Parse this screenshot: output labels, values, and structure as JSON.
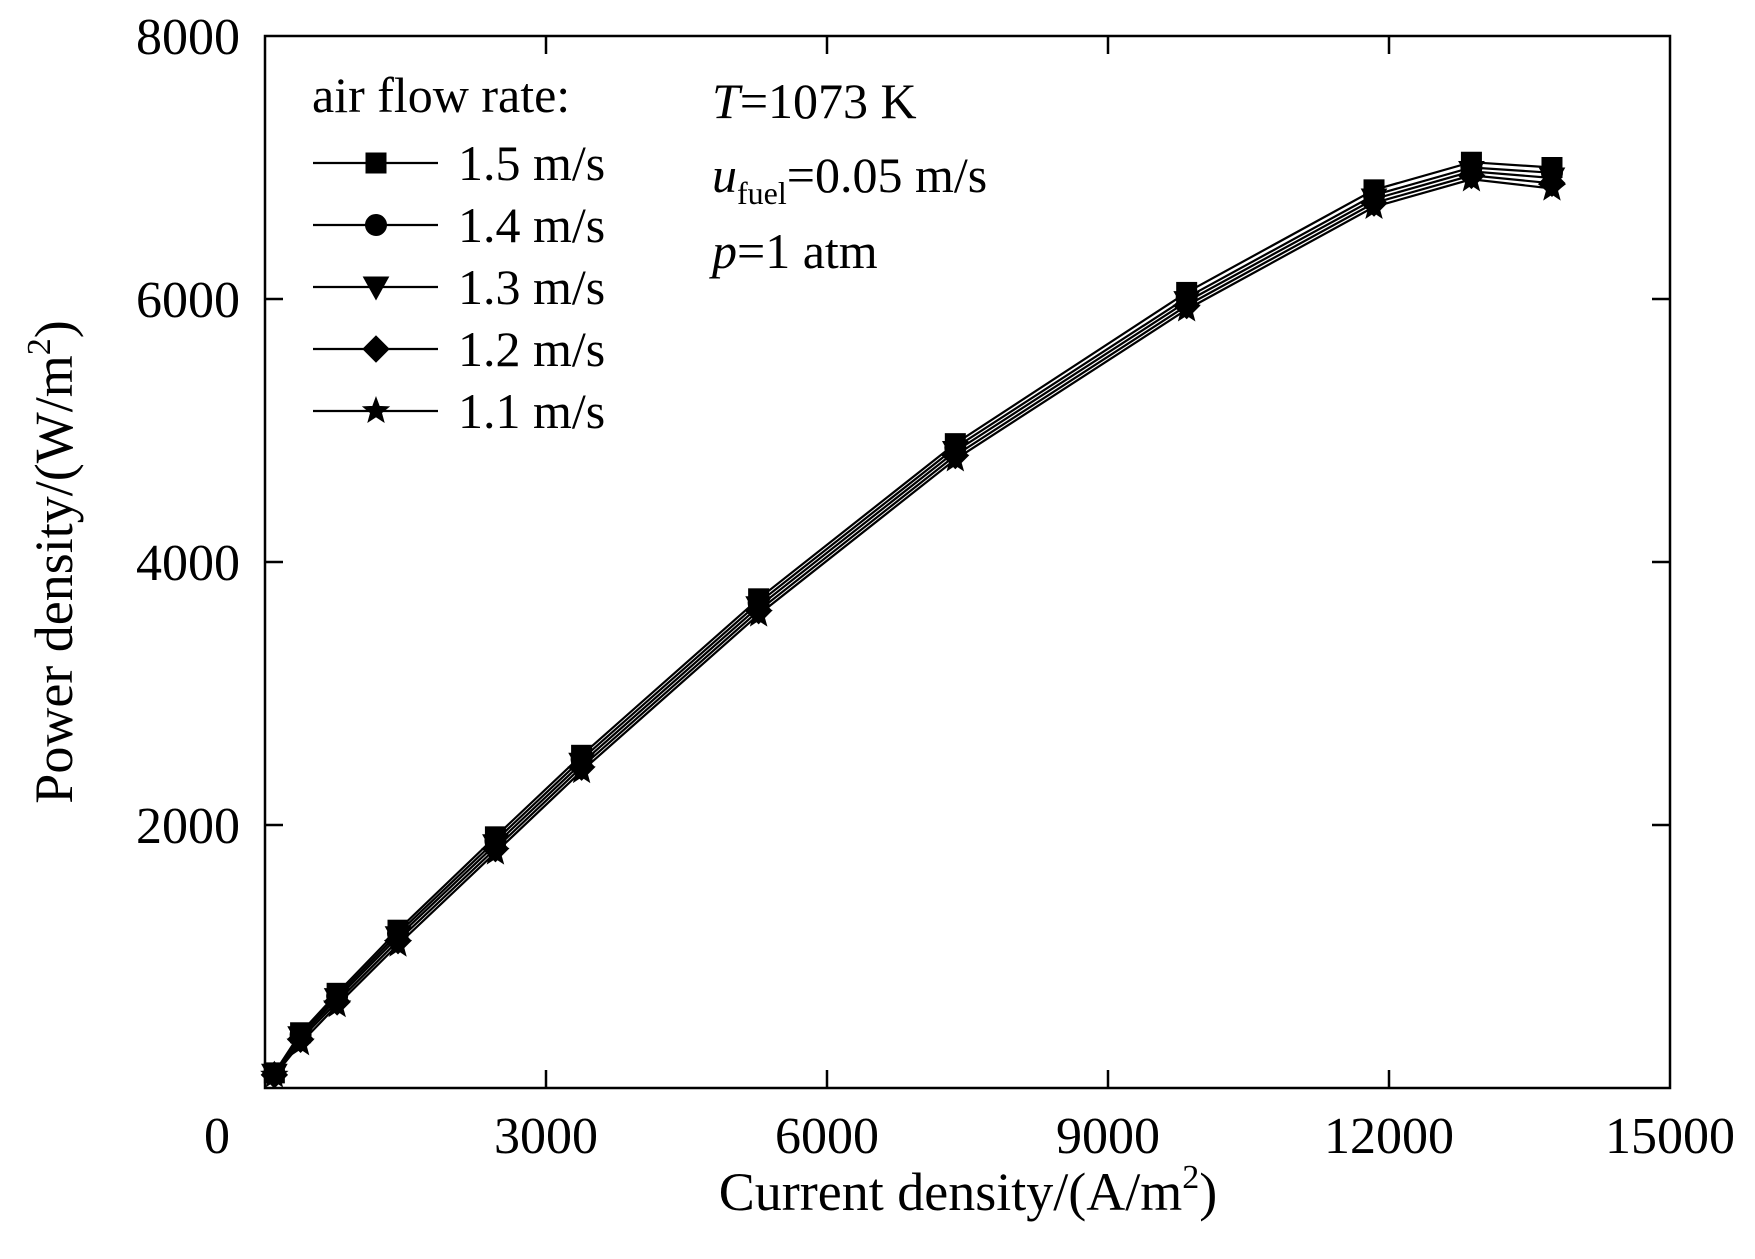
{
  "chart_data": {
    "type": "line",
    "title": "",
    "xlabel": "Current density/(A/m",
    "xlabel_sup": "2",
    "xlabel_tail": ")",
    "ylabel": "Power density/(W/m",
    "ylabel_sup": "2",
    "ylabel_tail": ")",
    "xlim": [
      0,
      15000
    ],
    "ylim": [
      0,
      8000
    ],
    "x_ticks": [
      0,
      3000,
      6000,
      9000,
      12000,
      15000
    ],
    "y_ticks": [
      2000,
      4000,
      6000,
      8000
    ],
    "x_tick_labels": [
      "0",
      "3000",
      "6000",
      "9000",
      "12000",
      "15000"
    ],
    "y_tick_labels": [
      "2000",
      "4000",
      "6000",
      "8000"
    ],
    "legend_title": "air flow rate:",
    "legend_position": "top-left",
    "annotations": {
      "line1_var": "T",
      "line1_rest": "=1073 K",
      "line2_var": "u",
      "line2_sub": "fuel",
      "line2_rest": "=0.05 m/s",
      "line3_var": "p",
      "line3_rest": "=1 atm"
    },
    "series": [
      {
        "name": "1.5 m/s",
        "marker": "square",
        "x": [
          100,
          380,
          770,
          1420,
          2460,
          3380,
          5270,
          7370,
          9840,
          11840,
          12880,
          13740
        ],
        "y": [
          115,
          420,
          720,
          1200,
          1910,
          2530,
          3720,
          4900,
          6050,
          6830,
          7040,
          7000
        ]
      },
      {
        "name": "1.4 m/s",
        "marker": "circle",
        "x": [
          100,
          380,
          770,
          1420,
          2460,
          3380,
          5270,
          7370,
          9840,
          11840,
          12880,
          13740
        ],
        "y": [
          110,
          405,
          700,
          1175,
          1880,
          2500,
          3690,
          4870,
          6010,
          6790,
          7000,
          6960
        ]
      },
      {
        "name": "1.3 m/s",
        "marker": "triangle-down",
        "x": [
          100,
          380,
          770,
          1420,
          2460,
          3380,
          5270,
          7370,
          9840,
          11840,
          12880,
          13740
        ],
        "y": [
          105,
          390,
          680,
          1150,
          1850,
          2470,
          3660,
          4840,
          5980,
          6760,
          6970,
          6920
        ]
      },
      {
        "name": "1.2 m/s",
        "marker": "diamond",
        "x": [
          100,
          380,
          770,
          1420,
          2460,
          3380,
          5270,
          7370,
          9840,
          11840,
          12880,
          13740
        ],
        "y": [
          100,
          370,
          655,
          1120,
          1820,
          2440,
          3630,
          4810,
          5950,
          6730,
          6940,
          6880
        ]
      },
      {
        "name": "1.1 m/s",
        "marker": "star",
        "x": [
          100,
          380,
          770,
          1420,
          2460,
          3380,
          5270,
          7370,
          9840,
          11840,
          12880,
          13740
        ],
        "y": [
          95,
          340,
          630,
          1090,
          1790,
          2410,
          3600,
          4780,
          5920,
          6700,
          6910,
          6840
        ]
      }
    ]
  }
}
